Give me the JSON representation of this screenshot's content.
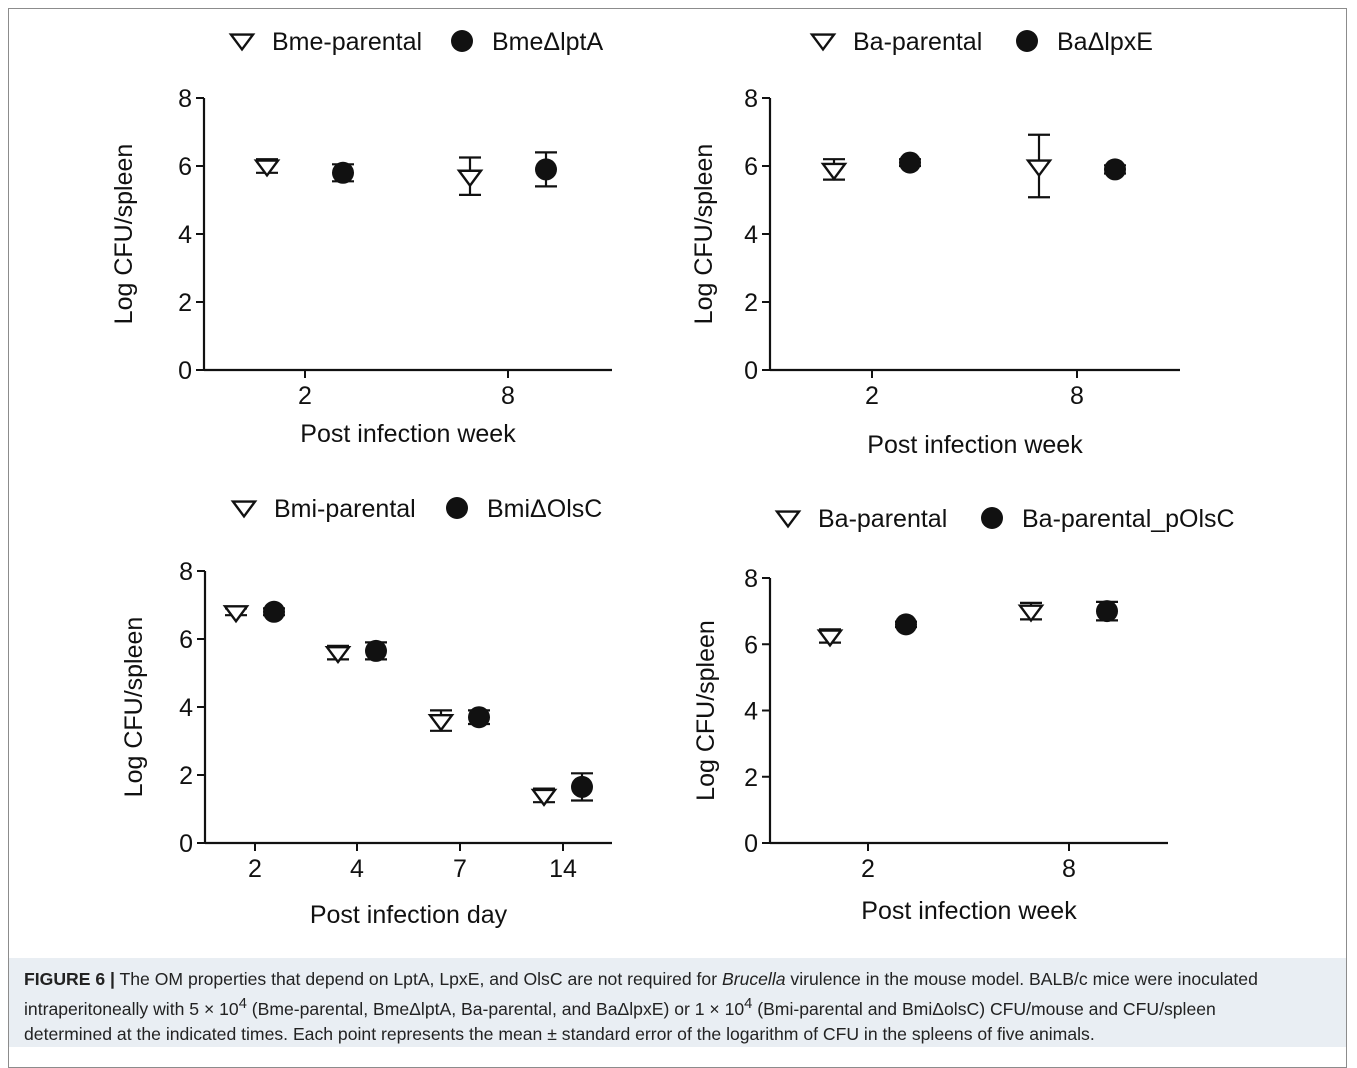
{
  "chart_data": [
    {
      "type": "scatter",
      "panel": "top-left",
      "legend": [
        "Bme-parental",
        "BmeΔlptA"
      ],
      "xlabel": "Post infection week",
      "ylabel": "Log CFU/spleen",
      "categories": [
        "2",
        "8"
      ],
      "ylim": [
        0,
        8
      ],
      "yticks": [
        "0",
        "2",
        "4",
        "6",
        "8"
      ],
      "series": [
        {
          "name": "Bme-parental",
          "marker": "open-triangle-down",
          "values": [
            6.0,
            5.7
          ],
          "errors": [
            0.2,
            0.55
          ]
        },
        {
          "name": "BmeΔlptA",
          "marker": "filled-circle",
          "values": [
            5.8,
            5.9
          ],
          "errors": [
            0.25,
            0.5
          ]
        }
      ]
    },
    {
      "type": "scatter",
      "panel": "top-right",
      "legend": [
        "Ba-parental",
        "BaΔlpxE"
      ],
      "xlabel": "Post infection week",
      "ylabel": "Log CFU/spleen",
      "categories": [
        "2",
        "8"
      ],
      "ylim": [
        0,
        8
      ],
      "yticks": [
        "0",
        "2",
        "4",
        "6",
        "8"
      ],
      "series": [
        {
          "name": "Ba-parental",
          "marker": "open-triangle-down",
          "values": [
            5.9,
            6.0
          ],
          "errors": [
            0.3,
            0.92
          ]
        },
        {
          "name": "BaΔlpxE",
          "marker": "filled-circle",
          "values": [
            6.1,
            5.9
          ],
          "errors": [
            0.1,
            0.12
          ]
        }
      ]
    },
    {
      "type": "scatter",
      "panel": "bottom-left",
      "legend": [
        "Bmi-parental",
        "BmiΔOlsC"
      ],
      "xlabel": "Post infection day",
      "ylabel": "Log CFU/spleen",
      "categories": [
        "2",
        "4",
        "7",
        "14"
      ],
      "ylim": [
        0,
        8
      ],
      "yticks": [
        "0",
        "2",
        "4",
        "6",
        "8"
      ],
      "series": [
        {
          "name": "Bmi-parental",
          "marker": "open-triangle-down",
          "values": [
            6.8,
            5.6,
            3.6,
            1.4
          ],
          "errors": [
            0.1,
            0.2,
            0.3,
            0.2
          ]
        },
        {
          "name": "BmiΔOlsC",
          "marker": "filled-circle",
          "values": [
            6.8,
            5.65,
            3.7,
            1.65
          ],
          "errors": [
            0.1,
            0.25,
            0.2,
            0.4
          ]
        }
      ]
    },
    {
      "type": "scatter",
      "panel": "bottom-right",
      "legend": [
        "Ba-parental",
        "Ba-parental_pOlsC"
      ],
      "xlabel": "Post infection week",
      "ylabel": "Log CFU/spleen",
      "categories": [
        "2",
        "8"
      ],
      "ylim": [
        0,
        8
      ],
      "yticks": [
        "0",
        "2",
        "4",
        "6",
        "8"
      ],
      "series": [
        {
          "name": "Ba-parental",
          "marker": "open-triangle-down",
          "values": [
            6.25,
            7.0
          ],
          "errors": [
            0.2,
            0.25
          ]
        },
        {
          "name": "Ba-parental_pOlsC",
          "marker": "filled-circle",
          "values": [
            6.6,
            7.0
          ],
          "errors": [
            0.08,
            0.28
          ]
        }
      ]
    }
  ],
  "caption": {
    "lead": "FIGURE 6 |",
    "line1_a": " The OM properties that depend on LptA, LpxE, and OlsC are not required for ",
    "line1_italic": "Brucella",
    "line1_b": " virulence in the mouse model. BALB/c mice were inoculated",
    "line2_a": "intraperitoneally with 5 × 10",
    "line2_sup1": "4",
    "line2_b": " (Bme-parental, BmeΔlptA, Ba-parental, and BaΔlpxE) or 1 × 10",
    "line2_sup2": "4",
    "line2_c": " (Bmi-parental and BmiΔolsC) CFU/mouse and CFU/spleen",
    "line3": "determined at the indicated times. Each point represents the mean ± standard error of the logarithm of CFU in the spleens of five animals."
  }
}
